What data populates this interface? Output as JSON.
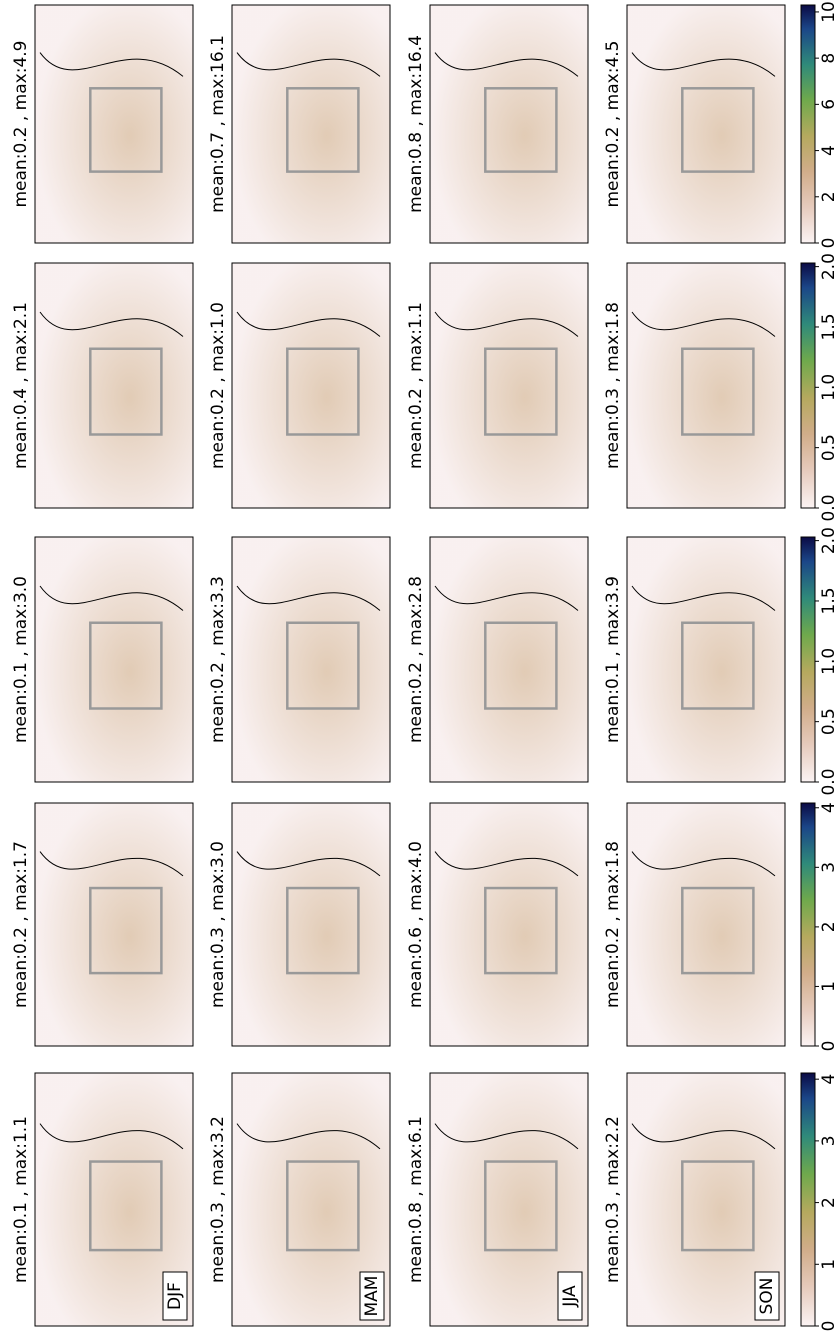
{
  "rows": [
    {
      "titles": [
        "mean:0.2 , max:4.9",
        "mean:0.7 , max:16.1",
        "mean:0.8 , max:16.4",
        "mean:0.2 , max:4.5"
      ],
      "colorbar": {
        "lim": [
          0,
          10.3
        ],
        "ticks": [
          0,
          2,
          4,
          6,
          8,
          10
        ]
      }
    },
    {
      "titles": [
        "mean:0.4 , max:2.1",
        "mean:0.2 , max:1.0",
        "mean:0.2 , max:1.1",
        "mean:0.3 , max:1.8"
      ],
      "colorbar": {
        "lim": [
          0,
          2.03
        ],
        "ticks": [
          {
            "value": 0,
            "label": "0.0"
          },
          0.5,
          {
            "value": 1,
            "label": "1.0"
          },
          1.5,
          {
            "value": 2,
            "label": "2.0"
          }
        ]
      }
    },
    {
      "titles": [
        "mean:0.1 , max:3.0",
        "mean:0.2 , max:3.3",
        "mean:0.2 , max:2.8",
        "mean:0.1 , max:3.9"
      ],
      "colorbar": {
        "lim": [
          0,
          2.03
        ],
        "ticks": [
          {
            "value": 0,
            "label": "0.0"
          },
          0.5,
          {
            "value": 1,
            "label": "1.0"
          },
          1.5,
          {
            "value": 2,
            "label": "2.0"
          }
        ]
      }
    },
    {
      "titles": [
        "mean:0.2 , max:1.7",
        "mean:0.3 , max:3.0",
        "mean:0.6 , max:4.0",
        "mean:0.2 , max:1.8"
      ],
      "colorbar": {
        "lim": [
          0,
          4.08
        ],
        "ticks": [
          0,
          1,
          2,
          3,
          4
        ]
      }
    },
    {
      "titles": [
        "mean:0.1 , max:1.1",
        "mean:0.3 , max:3.2",
        "mean:0.8 , max:6.1",
        "mean:0.3 , max:2.2"
      ],
      "colorbar": {
        "lim": [
          0,
          4.1
        ],
        "ticks": [
          0,
          1,
          2,
          3,
          4
        ]
      }
    }
  ],
  "seasons": [
    "DJF",
    "MAM",
    "JJA",
    "SON"
  ]
}
